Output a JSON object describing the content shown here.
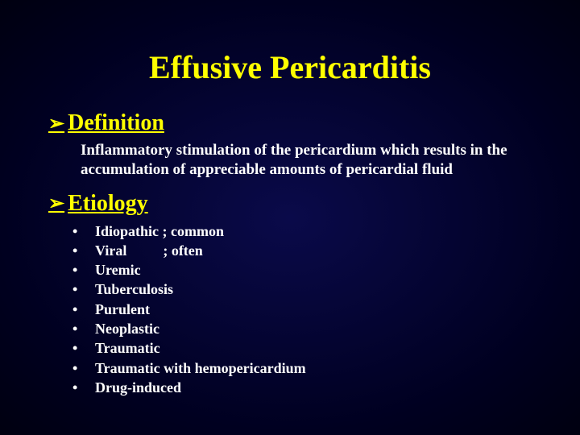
{
  "slide": {
    "background_gradient_center": "#0a0a4a",
    "background_gradient_edge": "#000010",
    "title": "Effusive Pericarditis",
    "title_color": "#ffff00",
    "title_fontsize": 40,
    "heading_color": "#ffff00",
    "body_color": "#ffffff",
    "arrow_glyph": "➢",
    "sections": {
      "definition": {
        "heading": "Definition",
        "text": "Inflammatory stimulation of the pericardium which results in the accumulation of appreciable amounts of pericardial fluid"
      },
      "etiology": {
        "heading": "Etiology",
        "bullet_glyph": "•",
        "items": [
          "Idiopathic ; common",
          "Viral          ; often",
          "Uremic",
          "Tuberculosis",
          "Purulent",
          "Neoplastic",
          "Traumatic",
          "Traumatic with hemopericardium",
          "Drug-induced"
        ]
      }
    }
  }
}
